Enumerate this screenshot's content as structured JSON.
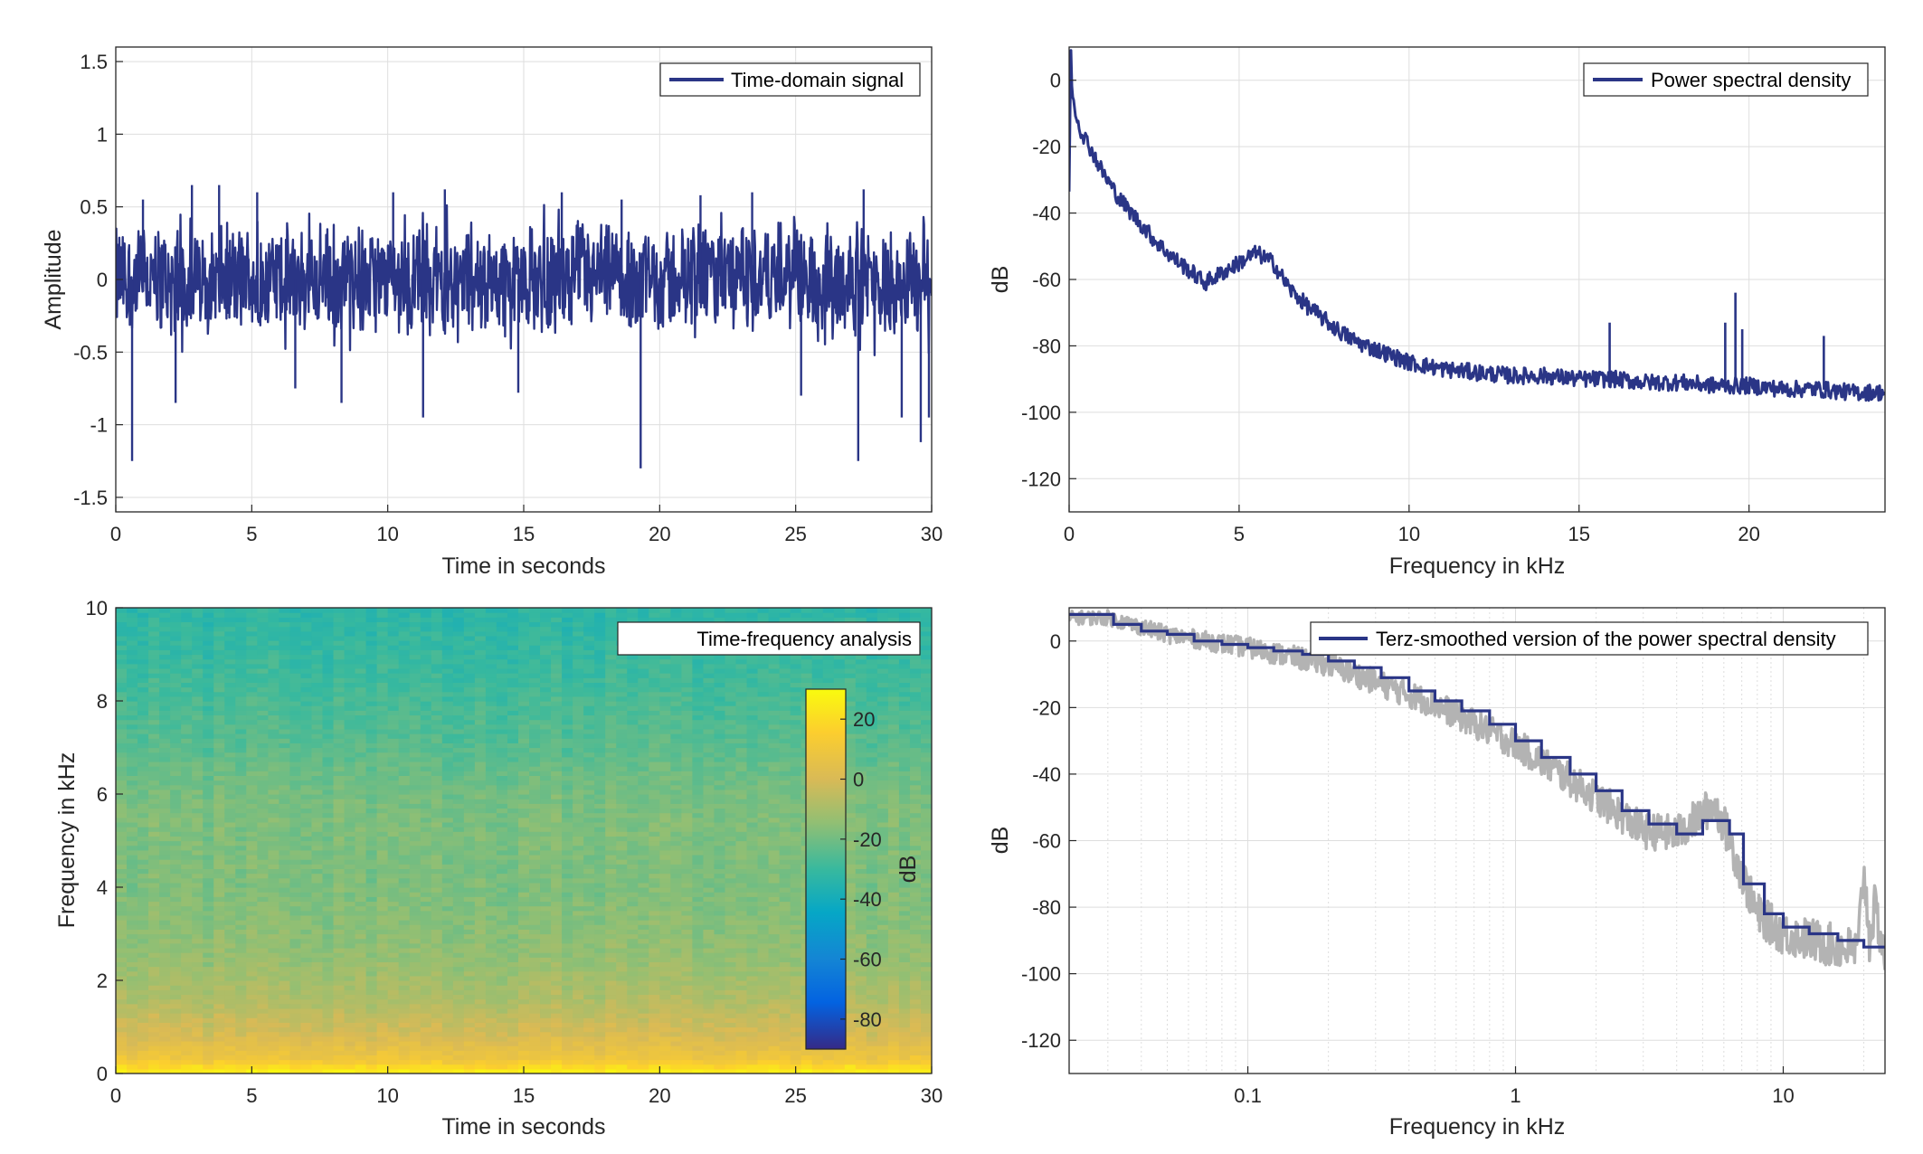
{
  "colors": {
    "signal": "#2a3586",
    "raw_psd": "#b3b3b3",
    "grid": "#dedede",
    "axis": "#262626",
    "background": "#ffffff"
  },
  "chart_data": [
    {
      "id": "time_domain",
      "type": "line",
      "xlabel": "Time in seconds",
      "ylabel": "Amplitude",
      "xlim": [
        0,
        30
      ],
      "ylim": [
        -1.6,
        1.6
      ],
      "xticks": [
        0,
        5,
        10,
        15,
        20,
        25,
        30
      ],
      "xtick_labels": [
        "0",
        "5",
        "10",
        "15",
        "20",
        "25",
        "30"
      ],
      "yticks": [
        -1.5,
        -1,
        -0.5,
        0,
        0.5,
        1,
        1.5
      ],
      "ytick_labels": [
        "-1.5",
        "-1",
        "-0.5",
        "0",
        "0.5",
        "1",
        "1.5"
      ],
      "grid": true,
      "legend": {
        "position": "top-right",
        "entries": [
          "Time-domain signal"
        ]
      },
      "series": [
        {
          "name": "Time-domain signal",
          "approx_band": [
            -0.35,
            0.35
          ],
          "spikes": [
            {
              "x": 0.6,
              "y": -1.25
            },
            {
              "x": 1.0,
              "y": 0.55
            },
            {
              "x": 2.2,
              "y": -0.85
            },
            {
              "x": 2.8,
              "y": 0.65
            },
            {
              "x": 3.8,
              "y": 0.65
            },
            {
              "x": 5.2,
              "y": 0.6
            },
            {
              "x": 6.6,
              "y": -0.75
            },
            {
              "x": 8.3,
              "y": -0.85
            },
            {
              "x": 10.2,
              "y": 0.6
            },
            {
              "x": 11.3,
              "y": -0.95
            },
            {
              "x": 12.1,
              "y": 0.62
            },
            {
              "x": 14.8,
              "y": -0.78
            },
            {
              "x": 16.4,
              "y": 0.6
            },
            {
              "x": 18.6,
              "y": 0.55
            },
            {
              "x": 19.3,
              "y": -1.3
            },
            {
              "x": 21.5,
              "y": 0.58
            },
            {
              "x": 23.4,
              "y": 0.6
            },
            {
              "x": 25.2,
              "y": -0.8
            },
            {
              "x": 27.3,
              "y": -1.25
            },
            {
              "x": 27.5,
              "y": 0.62
            },
            {
              "x": 28.9,
              "y": -0.95
            },
            {
              "x": 29.6,
              "y": -1.12
            },
            {
              "x": 29.9,
              "y": -0.95
            }
          ]
        }
      ]
    },
    {
      "id": "psd",
      "type": "line",
      "xlabel": "Frequency in kHz",
      "ylabel": "dB",
      "xlim": [
        0,
        24
      ],
      "ylim": [
        -130,
        10
      ],
      "xticks": [
        0,
        5,
        10,
        15,
        20
      ],
      "xtick_labels": [
        "0",
        "5",
        "10",
        "15",
        "20"
      ],
      "yticks": [
        -120,
        -100,
        -80,
        -60,
        -40,
        -20,
        0
      ],
      "ytick_labels": [
        "-120",
        "-100",
        "-80",
        "-60",
        "-40",
        "-20",
        "0"
      ],
      "grid": true,
      "legend": {
        "position": "top-right",
        "entries": [
          "Power spectral density"
        ]
      },
      "series": [
        {
          "name": "Power spectral density",
          "x": [
            0,
            0.05,
            0.1,
            0.3,
            0.6,
            1,
            1.5,
            2,
            2.5,
            3,
            3.5,
            4,
            4.5,
            5,
            5.5,
            6,
            6.5,
            7,
            7.5,
            8,
            8.5,
            9,
            10,
            11,
            12,
            13,
            14,
            15,
            16,
            17,
            18,
            19,
            20,
            21,
            22,
            23,
            24
          ],
          "y": [
            -32,
            8,
            -5,
            -14,
            -20,
            -28,
            -36,
            -42,
            -48,
            -53,
            -57,
            -61,
            -58,
            -55,
            -52,
            -55,
            -63,
            -68,
            -72,
            -76,
            -79,
            -81,
            -85,
            -87,
            -88,
            -89,
            -89,
            -90,
            -90,
            -91,
            -91,
            -92,
            -92,
            -93,
            -93,
            -94,
            -94
          ],
          "spikes": [
            {
              "x": 15.9,
              "y": -73
            },
            {
              "x": 19.3,
              "y": -73
            },
            {
              "x": 19.6,
              "y": -64
            },
            {
              "x": 19.8,
              "y": -75
            },
            {
              "x": 22.2,
              "y": -77
            }
          ]
        }
      ]
    },
    {
      "id": "spectrogram",
      "type": "heatmap",
      "xlabel": "Time in seconds",
      "ylabel": "Frequency in kHz",
      "xlim": [
        0,
        30
      ],
      "ylim": [
        0,
        10
      ],
      "xticks": [
        0,
        5,
        10,
        15,
        20,
        25,
        30
      ],
      "xtick_labels": [
        "0",
        "5",
        "10",
        "15",
        "20",
        "25",
        "30"
      ],
      "yticks": [
        0,
        2,
        4,
        6,
        8,
        10
      ],
      "ytick_labels": [
        "0",
        "2",
        "4",
        "6",
        "8",
        "10"
      ],
      "legend": {
        "position": "top-right",
        "entries": [
          "Time-frequency analysis"
        ]
      },
      "colorbar": {
        "label": "dB",
        "range": [
          -90,
          30
        ],
        "ticks": [
          20,
          0,
          -20,
          -40,
          -60,
          -80
        ],
        "tick_labels": [
          "20",
          "0",
          "-20",
          "-40",
          "-60",
          "-80"
        ],
        "colormap": "parula"
      },
      "level_profile": {
        "freq_khz": [
          0,
          0.3,
          0.8,
          1.5,
          2.5,
          4,
          5.5,
          6.2,
          7,
          8.5,
          10
        ],
        "db": [
          28,
          10,
          0,
          -8,
          -14,
          -18,
          -18,
          -20,
          -24,
          -29,
          -33
        ]
      }
    },
    {
      "id": "smoothed_psd",
      "type": "line",
      "xlabel": "Frequency in kHz",
      "ylabel": "dB",
      "xscale": "log",
      "xlim": [
        0.0215,
        24
      ],
      "ylim": [
        -130,
        10
      ],
      "xticks": [
        0.1,
        1,
        10
      ],
      "xtick_labels": [
        "0.1",
        "1",
        "10"
      ],
      "yticks": [
        -120,
        -100,
        -80,
        -60,
        -40,
        -20,
        0
      ],
      "ytick_labels": [
        "-120",
        "-100",
        "-80",
        "-60",
        "-40",
        "-20",
        "0"
      ],
      "grid": true,
      "legend": {
        "position": "top-right",
        "entries": [
          "Terz-smoothed version of the power spectral density"
        ]
      },
      "series": [
        {
          "name": "Terz-smoothed version of the power spectral density",
          "x": [
            0.0215,
            0.025,
            0.0315,
            0.04,
            0.05,
            0.063,
            0.08,
            0.1,
            0.125,
            0.16,
            0.2,
            0.25,
            0.315,
            0.4,
            0.5,
            0.63,
            0.8,
            1.0,
            1.25,
            1.6,
            2.0,
            2.5,
            3.15,
            4.0,
            5.0,
            6.3,
            7.1,
            8.5,
            10,
            12.5,
            16,
            20,
            24
          ],
          "y": [
            8,
            8,
            5,
            3,
            2,
            0,
            -1,
            -2,
            -3,
            -4,
            -6,
            -8,
            -11,
            -15,
            -18,
            -21,
            -25,
            -30,
            -35,
            -40,
            -45,
            -51,
            -55,
            -58,
            -54,
            -58,
            -73,
            -82,
            -86,
            -88,
            -90,
            -92,
            -92
          ]
        },
        {
          "name": "",
          "x": [
            0.0215,
            0.03,
            0.05,
            0.1,
            0.2,
            0.5,
            1,
            2,
            3,
            4,
            5,
            5.5,
            6,
            7,
            8,
            10,
            13,
            16,
            19,
            20,
            21,
            22,
            24
          ],
          "y": [
            7,
            7,
            2,
            -2,
            -7,
            -19,
            -31,
            -47,
            -57,
            -58,
            -52,
            -49,
            -55,
            -70,
            -82,
            -88,
            -90,
            -92,
            -93,
            -68,
            -90,
            -80,
            -95
          ]
        }
      ]
    }
  ]
}
